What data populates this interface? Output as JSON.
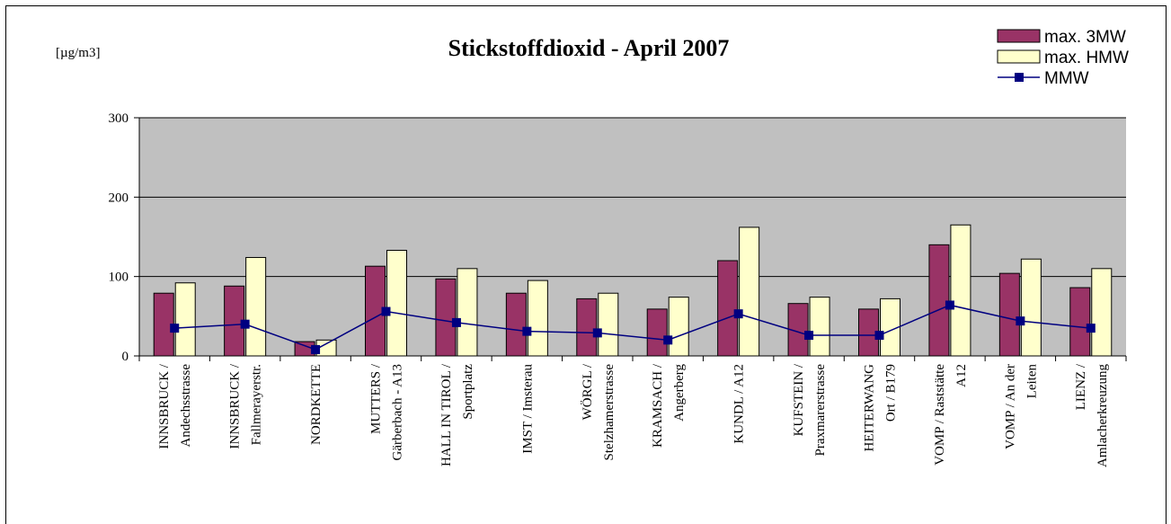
{
  "chart_data": {
    "type": "bar",
    "title": "Stickstoffdioxid - April 2007",
    "unit_label": "[µg/m3]",
    "ylim": [
      0,
      300
    ],
    "yticks": [
      0,
      100,
      200,
      300
    ],
    "grid": true,
    "legend_position": "top-right",
    "categories": [
      [
        "INNSBRUCK /",
        "Andechsstrasse"
      ],
      [
        "INNSBRUCK /",
        "Fallmerayerstr."
      ],
      [
        "NORDKETTE"
      ],
      [
        "MUTTERS /",
        "Gärberbach - A13"
      ],
      [
        "HALL IN TIROL /",
        "Sportplatz"
      ],
      [
        "IMST / Imsterau"
      ],
      [
        "WÖRGL /",
        "Stelzhamerstrasse"
      ],
      [
        "KRAMSACH /",
        "Angerberg"
      ],
      [
        "KUNDL / A12"
      ],
      [
        "KUFSTEIN /",
        "Praxmarerstrasse"
      ],
      [
        "HEITERWANG",
        "Ort / B179"
      ],
      [
        "VOMP / Raststätte",
        "A12"
      ],
      [
        "VOMP / An der",
        "Leiten"
      ],
      [
        "LIENZ /",
        "Amlacherkreuzung"
      ]
    ],
    "series": [
      {
        "name": "max. 3MW",
        "kind": "bar",
        "color": "#993366",
        "values": [
          79,
          88,
          18,
          113,
          97,
          79,
          72,
          59,
          120,
          66,
          59,
          140,
          104,
          86
        ]
      },
      {
        "name": "max. HMW",
        "kind": "bar",
        "color": "#FFFFCC",
        "values": [
          92,
          124,
          20,
          133,
          110,
          95,
          79,
          74,
          162,
          74,
          72,
          165,
          122,
          110
        ]
      },
      {
        "name": "MMW",
        "kind": "line",
        "color": "#000080",
        "values": [
          35,
          40,
          8,
          56,
          42,
          31,
          29,
          20,
          53,
          26,
          26,
          64,
          44,
          35
        ]
      }
    ],
    "colors": {
      "plot_background": "#C0C0C0",
      "gridline": "#000000"
    }
  }
}
